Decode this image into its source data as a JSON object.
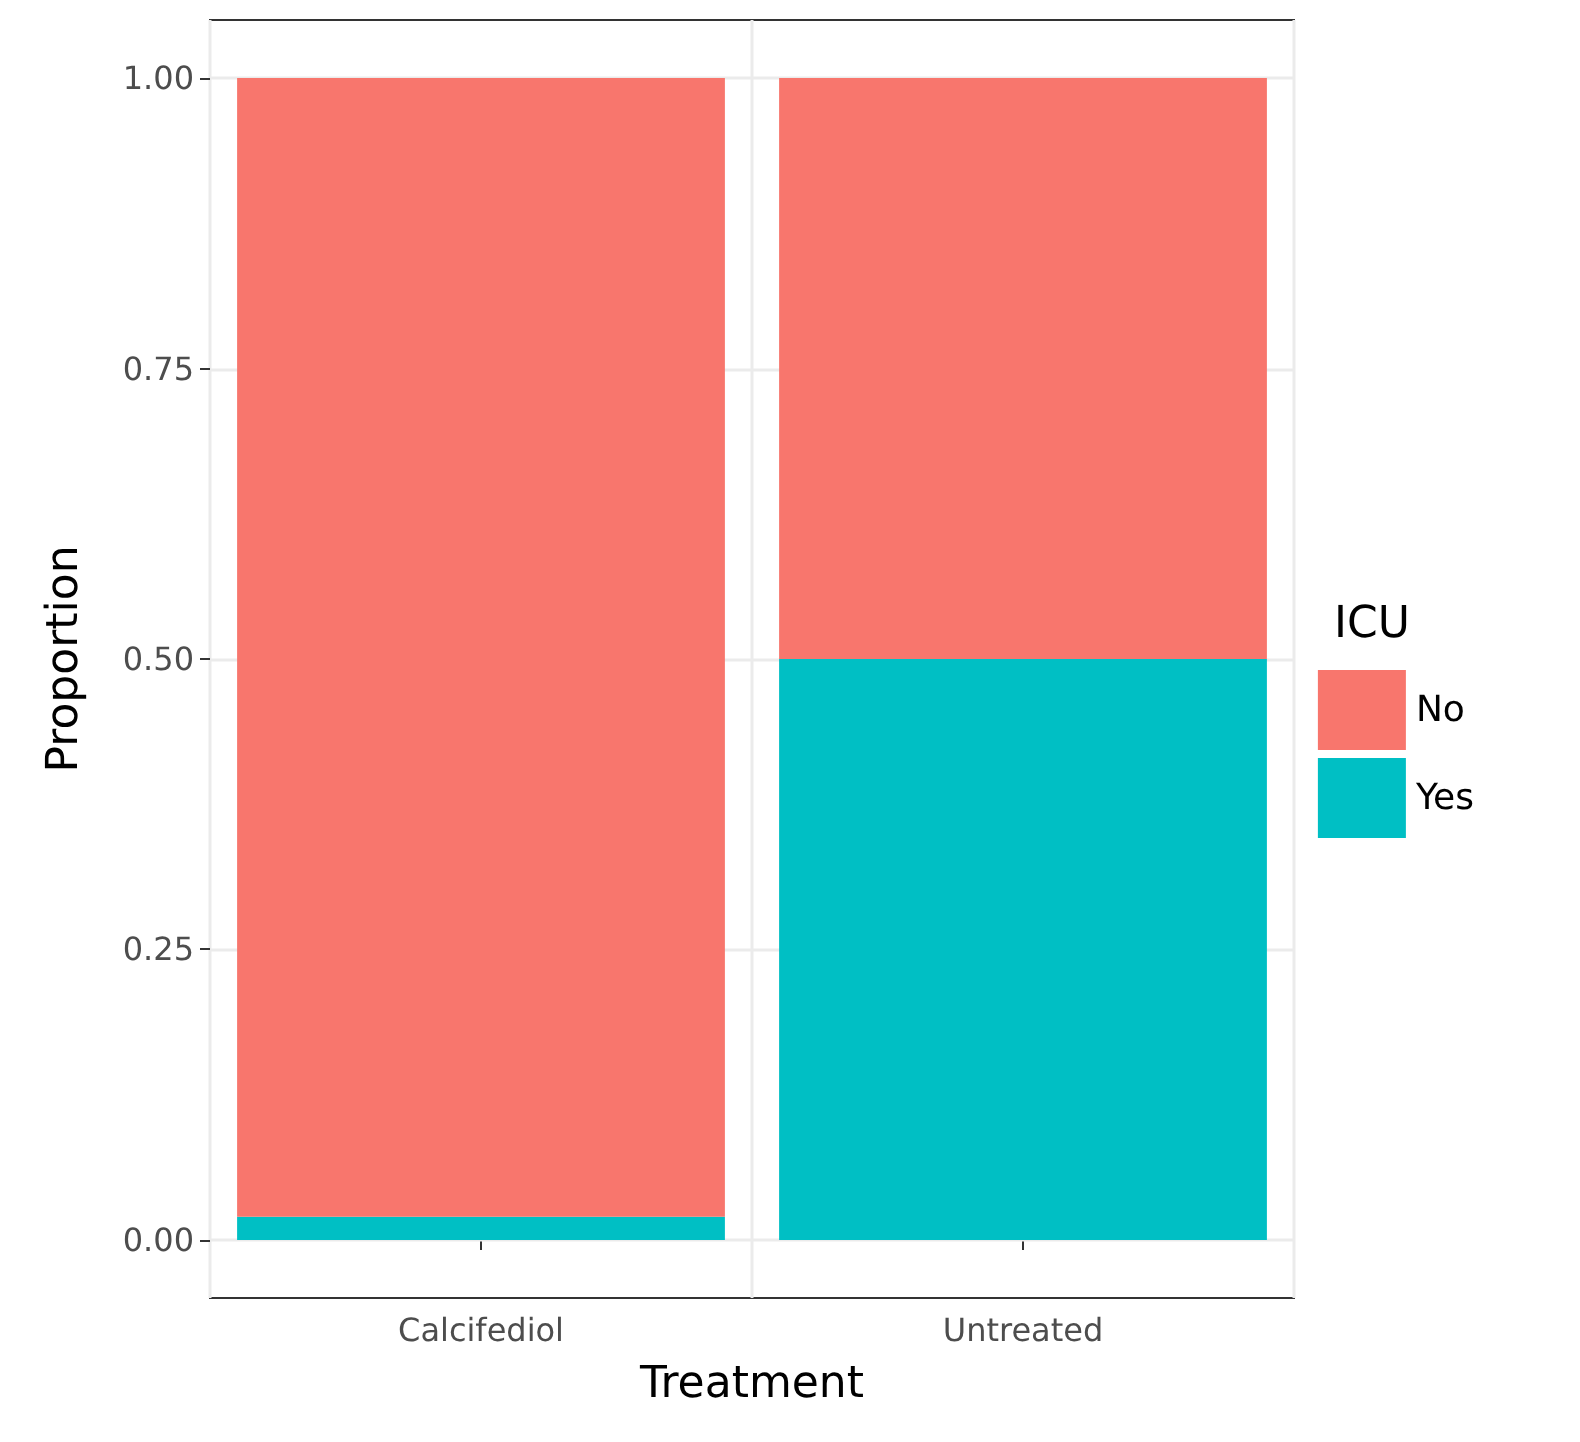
{
  "chart_data": {
    "type": "bar",
    "stacked": true,
    "xlabel": "Treatment",
    "ylabel": "Proportion",
    "legend_title": "ICU",
    "categories": [
      "Calcifediol",
      "Untreated"
    ],
    "series": [
      {
        "name": "Yes",
        "color": "#00bfc4",
        "values": [
          0.02,
          0.5
        ]
      },
      {
        "name": "No",
        "color": "#f8766d",
        "values": [
          0.98,
          0.5
        ]
      }
    ],
    "ylim": [
      -0.05,
      1.05
    ],
    "yticks": [
      {
        "value": 0,
        "label": "0.00"
      },
      {
        "value": 0.25,
        "label": "0.25"
      },
      {
        "value": 0.5,
        "label": "0.50"
      },
      {
        "value": 0.75,
        "label": "0.75"
      },
      {
        "value": 1,
        "label": "1.00"
      }
    ],
    "grid": true,
    "legend": "right"
  }
}
